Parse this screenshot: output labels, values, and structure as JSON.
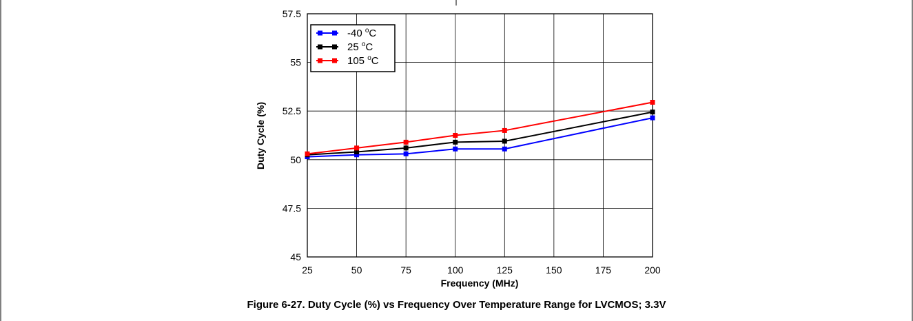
{
  "caption": "Figure 6-27. Duty Cycle (%) vs Frequency Over Temperature Range for LVCMOS; 3.3V",
  "chart_data": {
    "type": "line",
    "xlabel": "Frequency (MHz)",
    "ylabel": "Duty Cycle (%)",
    "x_ticks": [
      25,
      50,
      75,
      100,
      125,
      150,
      175,
      200
    ],
    "y_ticks": [
      45,
      47.5,
      50,
      52.5,
      55,
      57.5
    ],
    "x_tick_labels": [
      "25",
      "50",
      "75",
      "100",
      "125",
      "150",
      "175",
      "200"
    ],
    "y_tick_labels": [
      "45",
      "47.5",
      "50",
      "52.5",
      "55",
      "57.5"
    ],
    "xlim": [
      25,
      200
    ],
    "ylim": [
      45,
      57.5
    ],
    "grid": true,
    "legend_position": "top-left",
    "x": [
      25,
      50,
      75,
      100,
      125,
      200
    ],
    "series": [
      {
        "name": "-40 °C",
        "label_main": "-40 ",
        "label_sup": "o",
        "label_unit": "C",
        "color": "#0000ff",
        "values": [
          50.15,
          50.25,
          50.3,
          50.55,
          50.55,
          52.15
        ]
      },
      {
        "name": "25 °C",
        "label_main": "25 ",
        "label_sup": "o",
        "label_unit": "C",
        "color": "#000000",
        "values": [
          50.25,
          50.4,
          50.6,
          50.9,
          50.95,
          52.45
        ]
      },
      {
        "name": "105 °C",
        "label_main": "105 ",
        "label_sup": "o",
        "label_unit": "C",
        "color": "#ff0000",
        "values": [
          50.3,
          50.6,
          50.9,
          51.25,
          51.5,
          52.95
        ]
      }
    ]
  }
}
